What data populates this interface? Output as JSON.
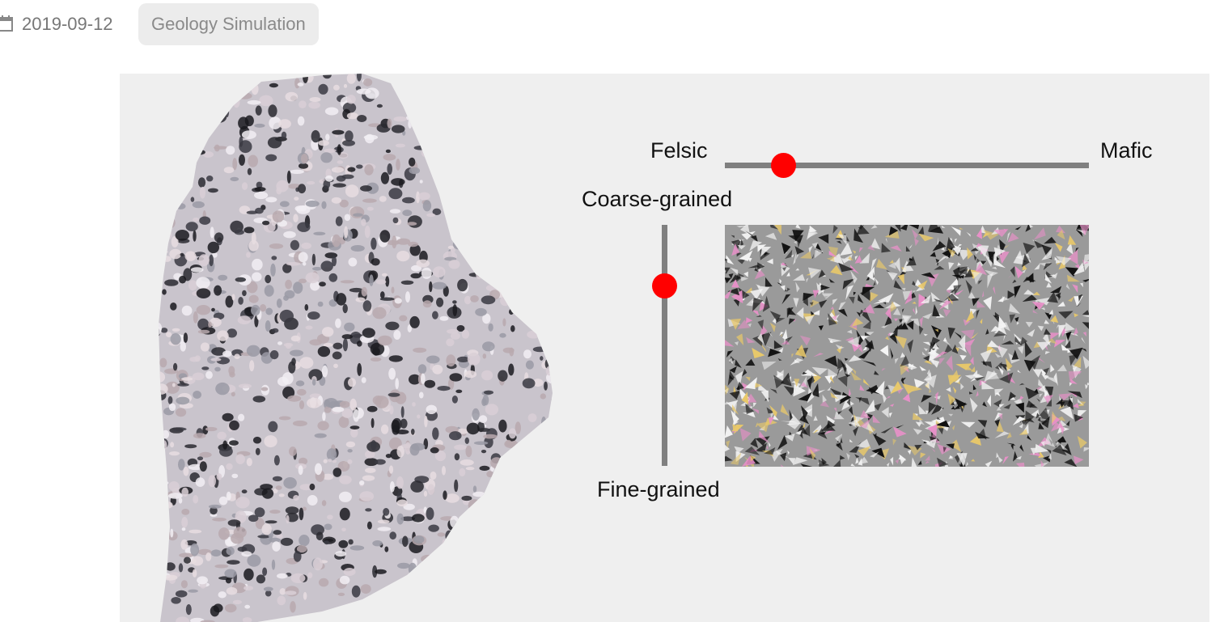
{
  "meta": {
    "date": "2019-09-12",
    "tag": "Geology Simulation",
    "date_icon": "calendar-icon"
  },
  "simulation": {
    "composition_slider": {
      "left_label": "Felsic",
      "right_label": "Mafic",
      "value": 0.16,
      "thumb_color": "#ff0000"
    },
    "grain_slider": {
      "top_label": "Coarse-grained",
      "bottom_label": "Fine-grained",
      "value": 0.25,
      "thumb_color": "#ff0000"
    },
    "colors": {
      "stage_background": "#efefef",
      "track": "#808080",
      "texture_background": "#9a9a9a",
      "crystal_dark": "#111111",
      "crystal_light": "#f4f4f4",
      "crystal_pink": "#e890c8",
      "crystal_yellow": "#e8c86a"
    },
    "rock_image": "granite-rock-photo"
  }
}
